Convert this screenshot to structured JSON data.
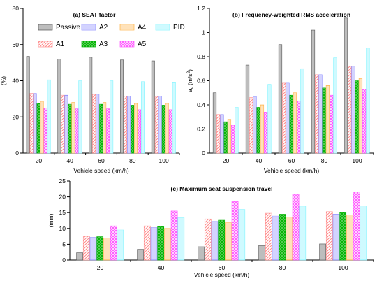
{
  "palette": {
    "Passive": "#bdbdbd",
    "A1": "#ff8a8a",
    "A2": "#8a8aff",
    "A3": "#00b300",
    "A4": "#ffb347",
    "A5": "#ff55ff",
    "PID": "#7ff4ff"
  },
  "chart_data": [
    {
      "type": "bar",
      "title": "(a) SEAT factor",
      "xlabel": "Vehicle speed (km/h)",
      "ylabel": "(%)",
      "ylim": [
        0,
        80
      ],
      "yticks": [
        "0",
        "20",
        "40",
        "60",
        "80"
      ],
      "categories": [
        "20",
        "40",
        "60",
        "80",
        "100"
      ],
      "legend": "top-left, inside, two rows",
      "series": [
        {
          "name": "Passive",
          "values": [
            53.5,
            52,
            53,
            51.5,
            51
          ]
        },
        {
          "name": "A1",
          "values": [
            33,
            32,
            32.5,
            31.5,
            31.5
          ]
        },
        {
          "name": "A2",
          "values": [
            33,
            32,
            32.5,
            31.5,
            31.5
          ]
        },
        {
          "name": "A3",
          "values": [
            27.5,
            27,
            27,
            26.5,
            26.5
          ]
        },
        {
          "name": "A4",
          "values": [
            28.5,
            28,
            28,
            27.5,
            27.5
          ]
        },
        {
          "name": "A5",
          "values": [
            25,
            24.5,
            24.5,
            24,
            24
          ]
        },
        {
          "name": "PID",
          "values": [
            40.5,
            40,
            40,
            39.5,
            39
          ]
        }
      ]
    },
    {
      "type": "bar",
      "title": "(b) Frequency-weighted RMS acceleration",
      "xlabel": "Vehicle speed (km/h)",
      "ylabel": "a",
      "ylabel_sub": "v",
      "ylabel_unit": "(m/s",
      "ylabel_sup": "2",
      "ylabel_close": ")",
      "ylim": [
        0,
        1.2
      ],
      "yticks": [
        "0",
        "0.2",
        "0.4",
        "0.6",
        "0.8",
        "1",
        "1.2"
      ],
      "categories": [
        "20",
        "40",
        "60",
        "80",
        "100"
      ],
      "series": [
        {
          "name": "Passive",
          "values": [
            0.5,
            0.73,
            0.9,
            1.02,
            1.12
          ]
        },
        {
          "name": "A1",
          "values": [
            0.32,
            0.46,
            0.58,
            0.65,
            0.72
          ]
        },
        {
          "name": "A2",
          "values": [
            0.32,
            0.47,
            0.58,
            0.65,
            0.72
          ]
        },
        {
          "name": "A3",
          "values": [
            0.26,
            0.38,
            0.48,
            0.54,
            0.6
          ]
        },
        {
          "name": "A4",
          "values": [
            0.28,
            0.4,
            0.5,
            0.56,
            0.62
          ]
        },
        {
          "name": "A5",
          "values": [
            0.23,
            0.34,
            0.43,
            0.48,
            0.53
          ]
        },
        {
          "name": "PID",
          "values": [
            0.38,
            0.57,
            0.7,
            0.79,
            0.87
          ]
        }
      ]
    },
    {
      "type": "bar",
      "title": "(c) Maximum seat suspension travel",
      "xlabel": "Vehicle speed (km/h)",
      "ylabel": "(mm)",
      "ylim": [
        0,
        25
      ],
      "yticks": [
        "0",
        "5",
        "10",
        "15",
        "20",
        "25"
      ],
      "categories": [
        "20",
        "40",
        "60",
        "80",
        "100"
      ],
      "series": [
        {
          "name": "Passive",
          "values": [
            2.3,
            3.4,
            4.2,
            4.6,
            5.1
          ]
        },
        {
          "name": "A1",
          "values": [
            7.5,
            10.8,
            13.0,
            14.8,
            15.3
          ]
        },
        {
          "name": "A2",
          "values": [
            7.2,
            10.3,
            12.2,
            13.9,
            14.5
          ]
        },
        {
          "name": "A3",
          "values": [
            7.4,
            10.6,
            12.6,
            14.5,
            15.0
          ]
        },
        {
          "name": "A4",
          "values": [
            7.0,
            10.0,
            11.8,
            13.6,
            14.3
          ]
        },
        {
          "name": "A5",
          "values": [
            10.8,
            15.5,
            18.5,
            20.8,
            21.5
          ]
        },
        {
          "name": "PID",
          "values": [
            9.5,
            13.4,
            16.0,
            17.0,
            17.1
          ]
        }
      ]
    }
  ]
}
